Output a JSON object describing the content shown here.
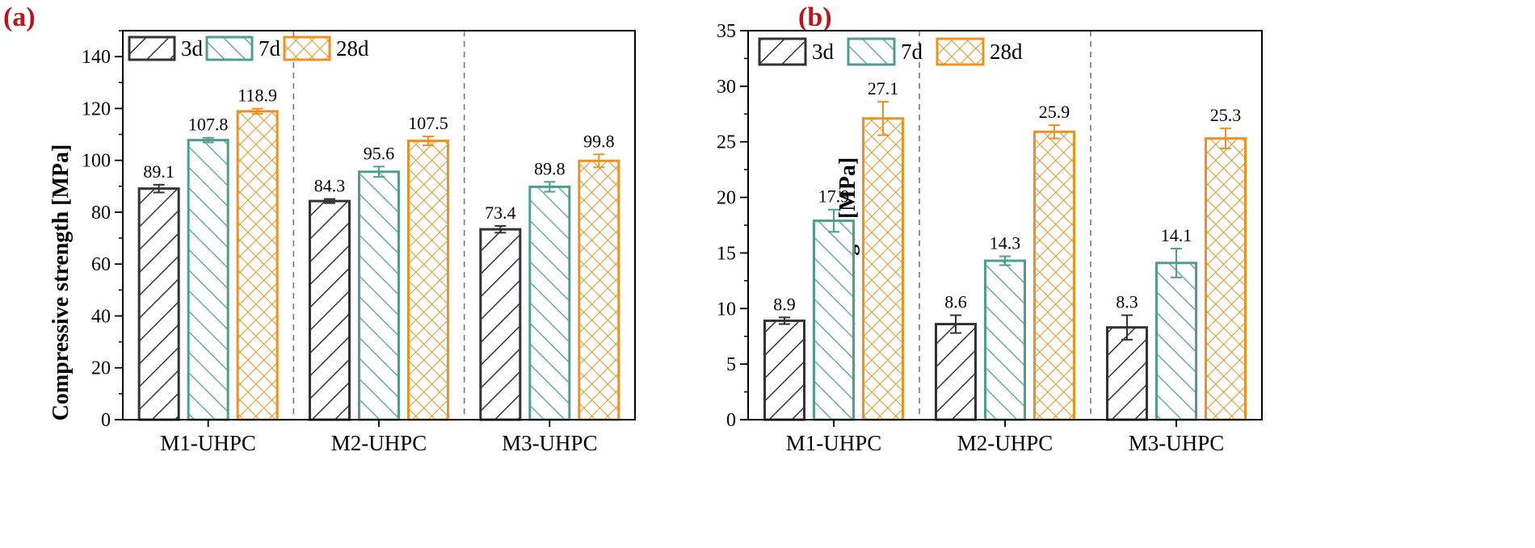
{
  "colors": {
    "3d": "#333333",
    "7d": "#4e9e8e",
    "28d": "#f0901e",
    "panel_label": "#c0121a"
  },
  "chart_data": [
    {
      "panel": "(a)",
      "type": "bar",
      "ylabel": "Compressive strength [MPa]",
      "xlabel": "",
      "ylim": [
        0,
        150
      ],
      "yticks": [
        0,
        20,
        40,
        60,
        80,
        100,
        120,
        140
      ],
      "categories": [
        "M1-UHPC",
        "M2-UHPC",
        "M3-UHPC"
      ],
      "legend_position": "top-left",
      "series": [
        {
          "name": "3d",
          "color": "#333333",
          "pattern": "diagonal-forward",
          "values": [
            89.1,
            84.3,
            73.4
          ],
          "errors": [
            1.5,
            0.8,
            1.3
          ]
        },
        {
          "name": "7d",
          "color": "#4e9e8e",
          "pattern": "diagonal-backward",
          "values": [
            107.8,
            95.6,
            89.8
          ],
          "errors": [
            0.9,
            2.0,
            1.9
          ]
        },
        {
          "name": "28d",
          "color": "#f0901e",
          "pattern": "crosshatch",
          "values": [
            118.9,
            107.5,
            99.8
          ],
          "errors": [
            1.0,
            1.7,
            2.5
          ]
        }
      ],
      "value_labels": [
        [
          "89.1",
          "84.3",
          "73.4"
        ],
        [
          "107.8",
          "95.6",
          "89.8"
        ],
        [
          "118.9",
          "107.5",
          "99.8"
        ]
      ]
    },
    {
      "panel": "(b)",
      "type": "bar",
      "ylabel": "Flexural strength [MPa]",
      "xlabel": "",
      "ylim": [
        0,
        35
      ],
      "yticks": [
        0,
        5,
        10,
        15,
        20,
        25,
        30,
        35
      ],
      "categories": [
        "M1-UHPC",
        "M2-UHPC",
        "M3-UHPC"
      ],
      "legend_position": "top-left",
      "series": [
        {
          "name": "3d",
          "color": "#333333",
          "pattern": "diagonal-forward",
          "values": [
            8.9,
            8.6,
            8.3
          ],
          "errors": [
            0.3,
            0.8,
            1.1
          ]
        },
        {
          "name": "7d",
          "color": "#4e9e8e",
          "pattern": "diagonal-backward",
          "values": [
            17.9,
            14.3,
            14.1
          ],
          "errors": [
            1.0,
            0.4,
            1.3
          ]
        },
        {
          "name": "28d",
          "color": "#f0901e",
          "pattern": "crosshatch",
          "values": [
            27.1,
            25.9,
            25.3
          ],
          "errors": [
            1.5,
            0.6,
            0.9
          ]
        }
      ],
      "value_labels": [
        [
          "8.9",
          "8.6",
          "8.3"
        ],
        [
          "17.9",
          "14.3",
          "14.1"
        ],
        [
          "27.1",
          "25.9",
          "25.3"
        ]
      ]
    }
  ]
}
